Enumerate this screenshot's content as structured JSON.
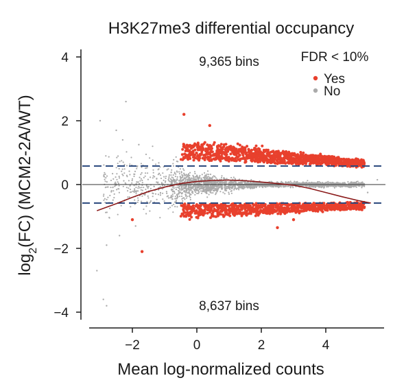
{
  "chart_data": {
    "type": "scatter",
    "title": "H3K27me3 differential occupancy",
    "xlabel": "Mean log-normalized counts",
    "ylabel_main": "log",
    "ylabel_sub": "2",
    "ylabel_rest": "(FC) (MCM2-2A/WT)",
    "xlim": [
      -3.3,
      5.9
    ],
    "ylim": [
      -4.3,
      4.4
    ],
    "x_ticks": [
      -2,
      0,
      2,
      4
    ],
    "y_ticks": [
      -4,
      -2,
      0,
      2,
      4
    ],
    "x_tick_labels": [
      "−2",
      "0",
      "2",
      "4"
    ],
    "y_tick_labels": [
      "−4",
      "−2",
      "0",
      "2",
      "4"
    ],
    "fc_thresholds": [
      0.58,
      -0.58
    ],
    "zero_line": 0,
    "annotations": {
      "up_bins": "9,365 bins",
      "down_bins": "8,637 bins"
    },
    "legend": {
      "title": "FDR < 10%",
      "entries": [
        {
          "label": "Yes",
          "color": "#e8402d"
        },
        {
          "label": "No",
          "color": "#ababab"
        }
      ]
    },
    "series": [
      {
        "name": "Yes",
        "color": "#e8402d",
        "description": "significant bins, FDR < 10%"
      },
      {
        "name": "No",
        "color": "#ababab",
        "description": "non-significant bins"
      }
    ],
    "trend_line": {
      "color": "#8b1a1a",
      "x": [
        -3.1,
        -2.5,
        -2.0,
        -1.5,
        -1.0,
        -0.5,
        0.0,
        0.5,
        1.0,
        1.5,
        2.0,
        2.5,
        3.0,
        3.5,
        4.0,
        4.5,
        5.0,
        5.4
      ],
      "y": [
        -0.82,
        -0.6,
        -0.4,
        -0.22,
        -0.08,
        0.03,
        0.1,
        0.13,
        0.14,
        0.12,
        0.08,
        0.03,
        -0.02,
        -0.12,
        -0.25,
        -0.38,
        -0.5,
        -0.58
      ]
    },
    "colors": {
      "threshold_line": "#2c4a7e",
      "axis": "#1a1a1a"
    }
  }
}
